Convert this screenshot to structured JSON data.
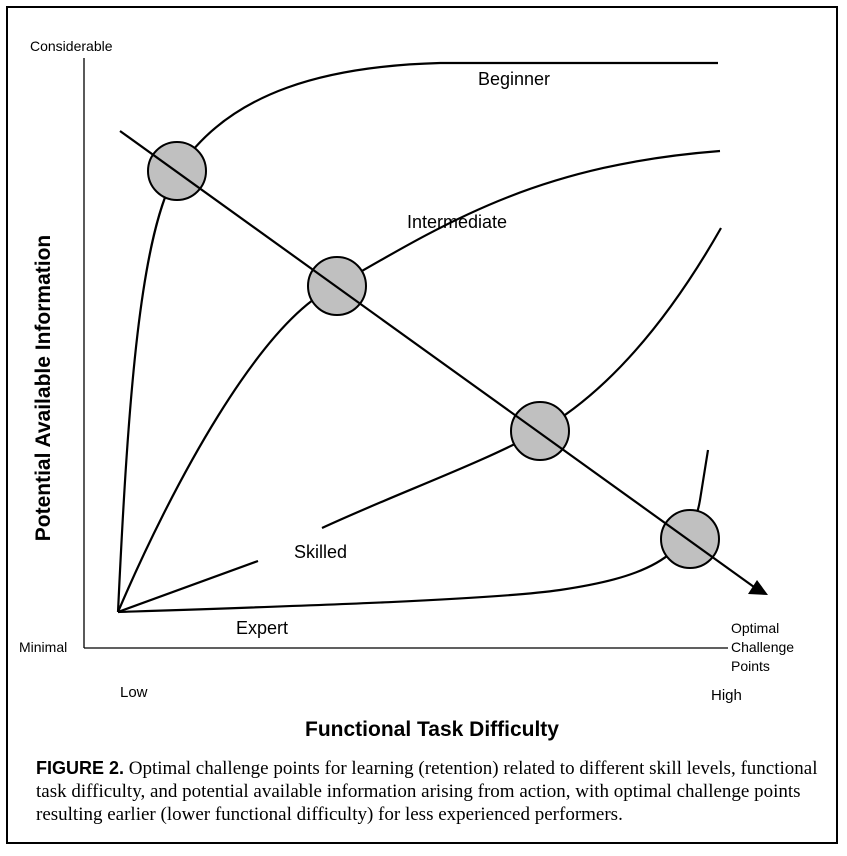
{
  "figure": {
    "label": "FIGURE 2.",
    "caption": " Optimal challenge points for learning (retention) related to different skill levels, functional task difficulty, and potential available information arising from action, with optimal challenge points resulting earlier (lower functional difficulty) for less experienced performers."
  },
  "axes": {
    "y_title": "Potential Available Information",
    "y_top": "Considerable",
    "y_bottom": "Minimal",
    "x_title": "Functional Task Difficulty",
    "x_low": "Low",
    "x_high": "High"
  },
  "curves": {
    "beginner": "Beginner",
    "intermediate": "Intermediate",
    "skilled": "Skilled",
    "expert": "Expert"
  },
  "arrow_label": [
    "Optimal",
    "Challenge",
    "Points"
  ],
  "colors": {
    "line": "#000000",
    "circle_fill": "#c0c0c0"
  }
}
